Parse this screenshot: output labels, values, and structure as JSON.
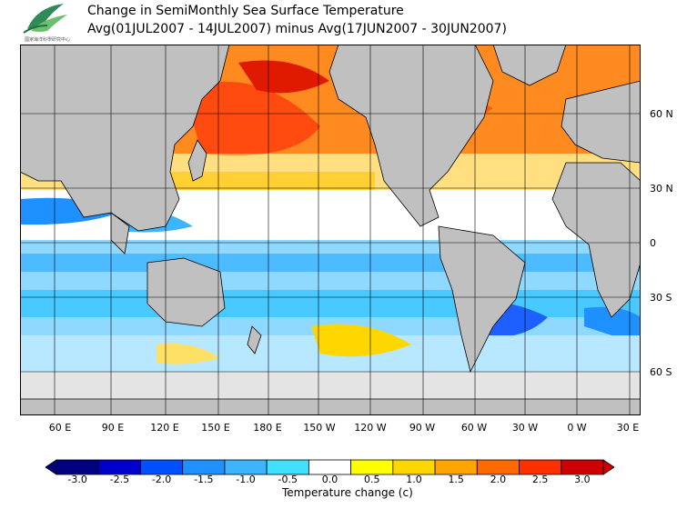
{
  "header": {
    "title_line1": "Change in SemiMonthly Sea Surface Temperature",
    "title_line2": "Avg(01JUL2007 - 14JUL2007) minus Avg(17JUN2007 - 30JUN2007)",
    "logo_text": "國家海洋科學研究中心"
  },
  "map": {
    "lat_labels": [
      "60 N",
      "30 N",
      "0",
      "30 S",
      "60 S"
    ],
    "lon_labels": [
      "60 E",
      "90 E",
      "120 E",
      "150 E",
      "180 E",
      "150 W",
      "120 W",
      "90 W",
      "60 W",
      "30 W",
      "0 W",
      "30 E"
    ],
    "colors": {
      "land": "#c0c0c0",
      "ice": "#e4e4e4",
      "coast": "#000000",
      "grid": "#000000"
    }
  },
  "colorbar": {
    "tick_labels": [
      "-3.0",
      "-2.5",
      "-2.0",
      "-1.5",
      "-1.0",
      "-0.5",
      "0.0",
      "0.5",
      "1.0",
      "1.5",
      "2.0",
      "2.5",
      "3.0"
    ],
    "colors": [
      "#000080",
      "#0000cd",
      "#0050ff",
      "#1e90ff",
      "#3cb4ff",
      "#40e0ff",
      "#ffffff",
      "#ffff00",
      "#ffd700",
      "#ffa500",
      "#ff6a00",
      "#ff3000",
      "#cc0000"
    ],
    "label": "Temperature change  (c)"
  }
}
